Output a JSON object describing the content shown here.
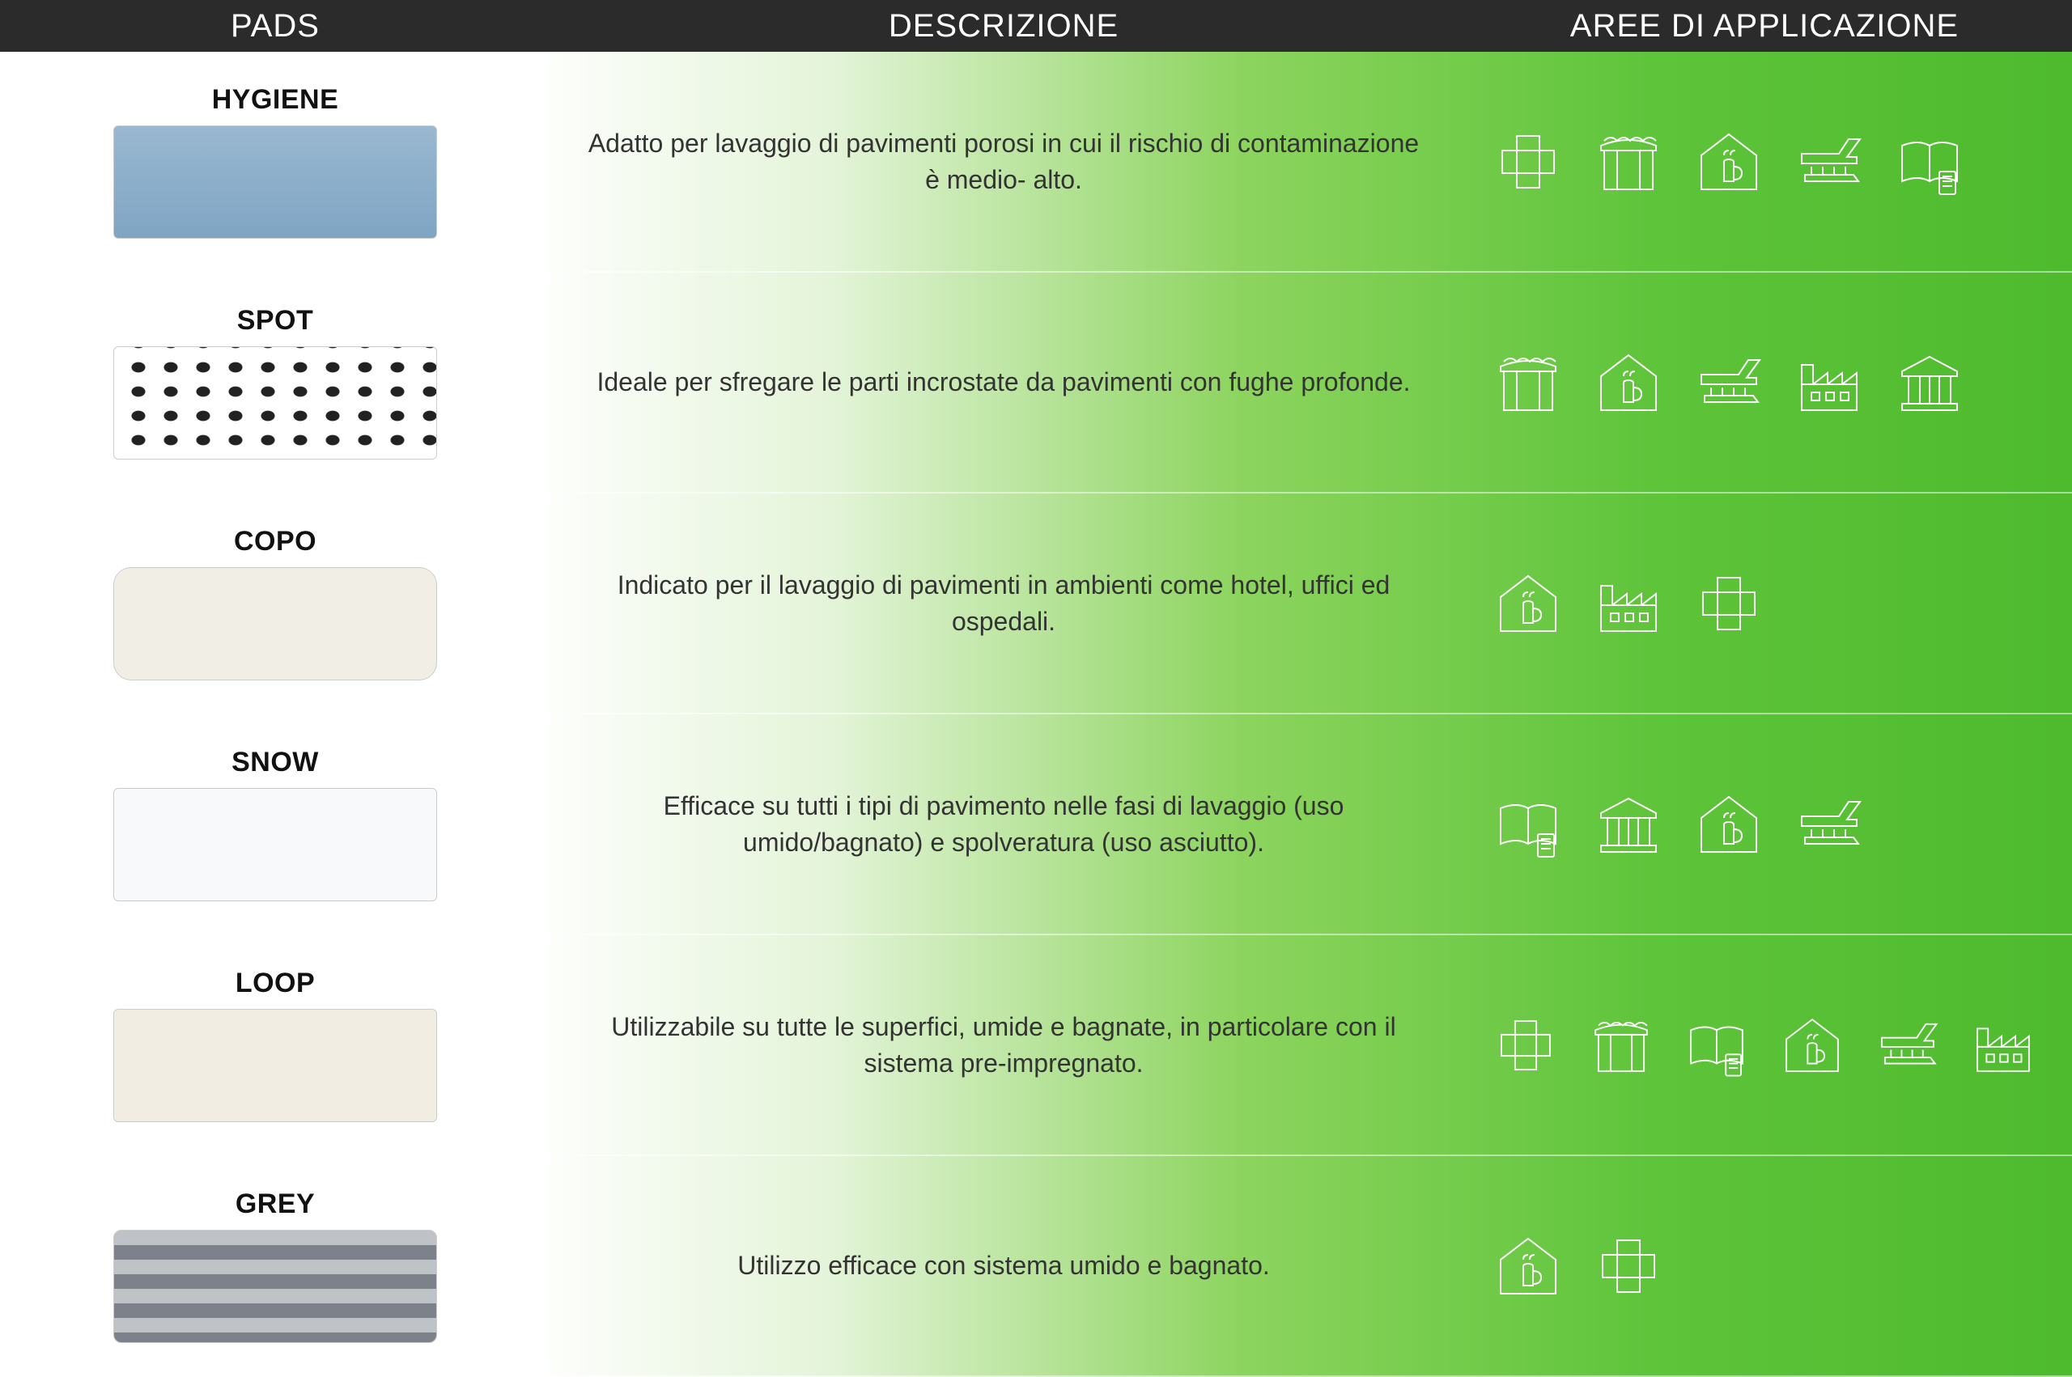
{
  "header": {
    "pads": "PADS",
    "desc": "DESCRIZIONE",
    "areas": "AREE DI APPLICAZIONE"
  },
  "colors": {
    "header_bg": "#2b2b2b",
    "gradient_from": "#ffffff",
    "gradient_to": "#4eba2e",
    "icon_stroke": "#ffffff"
  },
  "iconset": [
    "medical",
    "retail",
    "horeca",
    "transport",
    "education",
    "industry",
    "institution"
  ],
  "rows": [
    {
      "name": "HYGIENE",
      "pad_style": "pad-hygiene",
      "description": "Adatto per lavaggio di pavimenti porosi in cui il rischio di contaminazione è medio- alto.",
      "icons": [
        "medical",
        "retail",
        "horeca",
        "transport",
        "education"
      ]
    },
    {
      "name": "SPOT",
      "pad_style": "pad-spot",
      "description": "Ideale per sfregare le parti incrostate da pavimenti con fughe profonde.",
      "icons": [
        "retail",
        "horeca",
        "transport",
        "industry",
        "institution"
      ]
    },
    {
      "name": "COPO",
      "pad_style": "pad-copo",
      "description": "Indicato per il lavaggio di pavimenti in ambienti come hotel, uffici ed ospedali.",
      "icons": [
        "horeca",
        "industry",
        "medical"
      ]
    },
    {
      "name": "SNOW",
      "pad_style": "pad-snow",
      "description": "Efficace su tutti i tipi di pavimento nelle fasi di lavaggio (uso umido/bagnato) e spolveratura (uso asciutto).",
      "icons": [
        "education",
        "institution",
        "horeca",
        "transport"
      ]
    },
    {
      "name": "LOOP",
      "pad_style": "pad-loop",
      "description": "Utilizzabile su tutte le superfici, umide e bagnate, in particolare con il sistema pre-impregnato.",
      "icons": [
        "medical",
        "retail",
        "education",
        "horeca",
        "transport",
        "industry"
      ]
    },
    {
      "name": "GREY",
      "pad_style": "pad-grey",
      "description": "Utilizzo efficace con sistema umido e bagnato.",
      "icons": [
        "horeca",
        "medical"
      ]
    }
  ]
}
